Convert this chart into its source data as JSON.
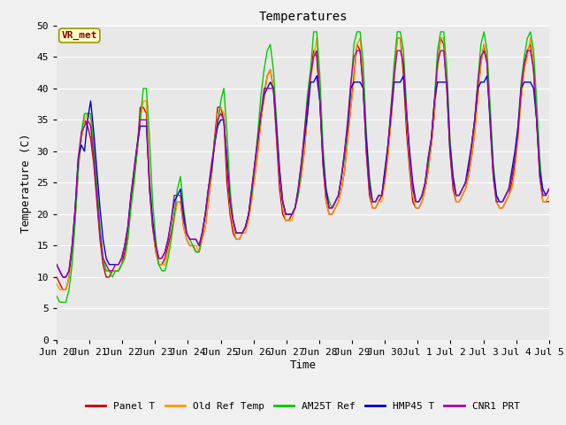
{
  "title": "Temperatures",
  "xlabel": "Time",
  "ylabel": "Temperature (C)",
  "ylim": [
    0,
    50
  ],
  "background_color": "#e8e8e8",
  "figure_color": "#f0f0f0",
  "annotation_text": "VR_met",
  "annotation_box_color": "#ffffcc",
  "annotation_box_edge": "#999900",
  "legend_entries": [
    "Panel T",
    "Old Ref Temp",
    "AM25T Ref",
    "HMP45 T",
    "CNR1 PRT"
  ],
  "line_colors": [
    "#cc0000",
    "#ff9900",
    "#00cc00",
    "#0000cc",
    "#aa00aa"
  ],
  "line_width": 1.0,
  "x_tick_labels": [
    "Jun 20",
    "Jun 21",
    "Jun 22",
    "Jun 23",
    "Jun 24",
    "Jun 25",
    "Jun 26",
    "Jun 27",
    "Jun 28",
    "Jun 29",
    "Jun 30",
    "Jul 1",
    "Jul 2",
    "Jul 3",
    "Jul 4",
    "Jul 5"
  ],
  "x_tick_positions": [
    0,
    1,
    2,
    3,
    4,
    5,
    6,
    7,
    8,
    9,
    10,
    11,
    12,
    13,
    14,
    15
  ],
  "y_ticks": [
    0,
    5,
    10,
    15,
    20,
    25,
    30,
    35,
    40,
    45,
    50
  ],
  "series": {
    "panel_t": [
      10,
      9,
      8,
      8,
      10,
      14,
      20,
      28,
      32,
      35,
      34,
      32,
      28,
      22,
      16,
      12,
      10,
      10,
      11,
      11,
      11,
      12,
      14,
      17,
      22,
      26,
      30,
      37,
      37,
      36,
      24,
      18,
      14,
      12,
      12,
      13,
      15,
      17,
      20,
      22,
      22,
      18,
      16,
      15,
      15,
      14,
      14,
      16,
      18,
      22,
      26,
      32,
      37,
      37,
      35,
      25,
      20,
      17,
      16,
      16,
      17,
      18,
      20,
      23,
      26,
      30,
      35,
      39,
      42,
      43,
      40,
      32,
      24,
      20,
      19,
      19,
      20,
      21,
      23,
      26,
      30,
      36,
      42,
      46,
      45,
      38,
      28,
      22,
      20,
      20,
      21,
      22,
      24,
      27,
      32,
      37,
      42,
      47,
      46,
      40,
      30,
      23,
      21,
      21,
      22,
      23,
      26,
      30,
      35,
      42,
      48,
      48,
      42,
      33,
      27,
      22,
      21,
      21,
      22,
      24,
      27,
      31,
      36,
      44,
      48,
      47,
      40,
      30,
      24,
      22,
      22,
      23,
      24,
      26,
      29,
      33,
      39,
      44,
      47,
      44,
      35,
      26,
      22,
      21,
      21,
      22,
      23,
      25,
      28,
      33,
      39,
      43,
      46,
      47,
      43,
      35,
      26,
      22,
      22,
      22
    ],
    "old_ref_t": [
      9,
      8,
      8,
      8,
      10,
      13,
      19,
      27,
      32,
      35,
      36,
      35,
      30,
      24,
      17,
      13,
      11,
      11,
      11,
      11,
      11,
      12,
      13,
      16,
      21,
      25,
      30,
      35,
      38,
      38,
      26,
      18,
      14,
      12,
      12,
      12,
      14,
      16,
      19,
      22,
      22,
      18,
      16,
      15,
      15,
      15,
      14,
      16,
      18,
      22,
      26,
      31,
      36,
      37,
      36,
      28,
      21,
      18,
      16,
      16,
      17,
      17,
      19,
      22,
      26,
      30,
      35,
      38,
      42,
      43,
      40,
      33,
      26,
      21,
      19,
      19,
      19,
      21,
      23,
      26,
      30,
      36,
      41,
      45,
      48,
      40,
      29,
      22,
      20,
      20,
      21,
      22,
      24,
      27,
      32,
      37,
      41,
      47,
      48,
      42,
      31,
      24,
      21,
      21,
      22,
      22,
      25,
      29,
      35,
      41,
      48,
      48,
      44,
      35,
      28,
      23,
      21,
      21,
      22,
      24,
      27,
      31,
      36,
      43,
      48,
      48,
      42,
      32,
      25,
      22,
      22,
      23,
      24,
      26,
      29,
      33,
      38,
      44,
      47,
      45,
      36,
      27,
      22,
      21,
      21,
      22,
      23,
      24,
      27,
      32,
      38,
      43,
      45,
      48,
      44,
      36,
      27,
      22,
      22,
      23
    ],
    "am25t_ref": [
      7,
      6,
      6,
      6,
      8,
      12,
      19,
      27,
      33,
      36,
      36,
      36,
      31,
      25,
      18,
      13,
      11,
      11,
      10,
      11,
      11,
      12,
      13,
      16,
      21,
      25,
      30,
      35,
      40,
      40,
      32,
      22,
      16,
      12,
      11,
      11,
      13,
      16,
      20,
      24,
      26,
      21,
      17,
      16,
      15,
      14,
      14,
      17,
      20,
      24,
      27,
      32,
      34,
      38,
      40,
      33,
      24,
      19,
      17,
      17,
      17,
      18,
      20,
      23,
      28,
      33,
      39,
      43,
      46,
      47,
      43,
      35,
      27,
      22,
      20,
      20,
      20,
      21,
      23,
      27,
      33,
      39,
      43,
      49,
      49,
      42,
      31,
      24,
      22,
      21,
      22,
      23,
      26,
      29,
      34,
      40,
      47,
      49,
      49,
      44,
      33,
      26,
      22,
      22,
      23,
      23,
      27,
      31,
      37,
      44,
      49,
      49,
      46,
      37,
      29,
      24,
      22,
      22,
      23,
      25,
      28,
      32,
      38,
      46,
      49,
      49,
      43,
      32,
      26,
      23,
      23,
      24,
      25,
      27,
      31,
      35,
      41,
      47,
      49,
      46,
      37,
      28,
      23,
      22,
      22,
      23,
      24,
      26,
      29,
      34,
      41,
      45,
      48,
      49,
      46,
      38,
      29,
      23,
      23,
      24
    ],
    "hmp45_t": [
      12,
      11,
      10,
      10,
      11,
      15,
      21,
      29,
      31,
      30,
      35,
      38,
      33,
      27,
      21,
      16,
      13,
      12,
      12,
      12,
      12,
      13,
      15,
      18,
      23,
      27,
      31,
      34,
      34,
      34,
      25,
      19,
      15,
      13,
      13,
      14,
      16,
      19,
      22,
      23,
      24,
      20,
      17,
      16,
      16,
      16,
      15,
      17,
      20,
      24,
      27,
      31,
      34,
      35,
      35,
      29,
      22,
      19,
      17,
      17,
      17,
      18,
      20,
      24,
      28,
      32,
      36,
      39,
      40,
      41,
      40,
      34,
      27,
      22,
      20,
      20,
      20,
      21,
      24,
      28,
      32,
      36,
      41,
      41,
      42,
      38,
      29,
      24,
      21,
      21,
      22,
      23,
      26,
      30,
      34,
      40,
      41,
      41,
      41,
      40,
      32,
      25,
      22,
      22,
      23,
      23,
      27,
      31,
      36,
      41,
      41,
      41,
      42,
      36,
      30,
      25,
      22,
      22,
      23,
      25,
      29,
      32,
      38,
      41,
      41,
      41,
      41,
      31,
      26,
      23,
      23,
      24,
      25,
      28,
      31,
      35,
      40,
      41,
      41,
      42,
      35,
      27,
      23,
      22,
      22,
      23,
      24,
      27,
      30,
      34,
      40,
      41,
      41,
      41,
      40,
      35,
      27,
      24,
      23,
      24
    ],
    "cnr1_prt": [
      12,
      11,
      10,
      10,
      11,
      15,
      21,
      29,
      33,
      34,
      35,
      34,
      29,
      23,
      17,
      13,
      12,
      11,
      11,
      12,
      12,
      13,
      15,
      18,
      23,
      27,
      31,
      35,
      35,
      35,
      24,
      18,
      15,
      13,
      13,
      14,
      16,
      19,
      23,
      23,
      23,
      19,
      17,
      16,
      16,
      16,
      15,
      17,
      20,
      24,
      28,
      31,
      35,
      36,
      35,
      28,
      22,
      19,
      17,
      17,
      17,
      18,
      20,
      24,
      28,
      32,
      36,
      40,
      40,
      40,
      40,
      33,
      26,
      22,
      20,
      20,
      20,
      21,
      24,
      28,
      33,
      38,
      42,
      45,
      46,
      38,
      28,
      23,
      21,
      21,
      22,
      23,
      26,
      30,
      35,
      41,
      45,
      46,
      46,
      40,
      30,
      24,
      22,
      22,
      23,
      23,
      26,
      31,
      37,
      42,
      46,
      46,
      44,
      36,
      29,
      24,
      22,
      22,
      23,
      25,
      29,
      32,
      38,
      44,
      46,
      46,
      40,
      30,
      25,
      23,
      23,
      24,
      25,
      27,
      31,
      35,
      41,
      45,
      46,
      44,
      34,
      26,
      22,
      22,
      22,
      23,
      24,
      26,
      29,
      33,
      40,
      44,
      46,
      46,
      43,
      35,
      26,
      23,
      23,
      24
    ]
  }
}
